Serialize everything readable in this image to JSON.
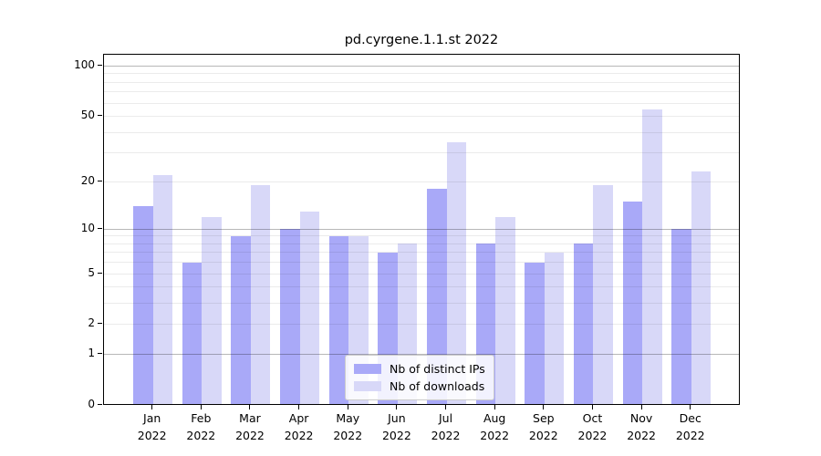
{
  "chart_data": {
    "type": "bar",
    "title": "pd.cyrgene.1.1.st 2022",
    "categories": [
      "Jan",
      "Feb",
      "Mar",
      "Apr",
      "May",
      "Jun",
      "Jul",
      "Aug",
      "Sep",
      "Oct",
      "Nov",
      "Dec"
    ],
    "category_year": "2022",
    "series": [
      {
        "name": "Nb of distinct IPs",
        "color": "#a9a9f8",
        "values": [
          14,
          6,
          9,
          10,
          9,
          7,
          18,
          8,
          6,
          8,
          15,
          10
        ]
      },
      {
        "name": "Nb of downloads",
        "color": "#d8d8f8",
        "values": [
          22,
          12,
          19,
          13,
          9,
          8,
          35,
          12,
          7,
          19,
          55,
          23
        ]
      }
    ],
    "yscale": "log1p",
    "ylim": [
      0,
      100
    ],
    "ytick_values": [
      0,
      1,
      2,
      5,
      10,
      20,
      50,
      100
    ],
    "ytick_labels": [
      "0",
      "1",
      "2",
      "5",
      "10",
      "20",
      "50",
      "100"
    ],
    "major_grid_values": [
      1,
      10,
      100
    ],
    "minor_grid_values": [
      2,
      3,
      4,
      5,
      6,
      7,
      8,
      9,
      20,
      30,
      40,
      50,
      60,
      70,
      80,
      90
    ],
    "grid": true,
    "legend_position": "lower center"
  },
  "colors": {
    "major_grid": "rgba(0,0,0,0.28)",
    "minor_grid": "rgba(0,0,0,0.08)",
    "spine": "#000000",
    "bar_distinct_ips": "#a9a9f8",
    "bar_downloads": "#d8d8f8"
  }
}
